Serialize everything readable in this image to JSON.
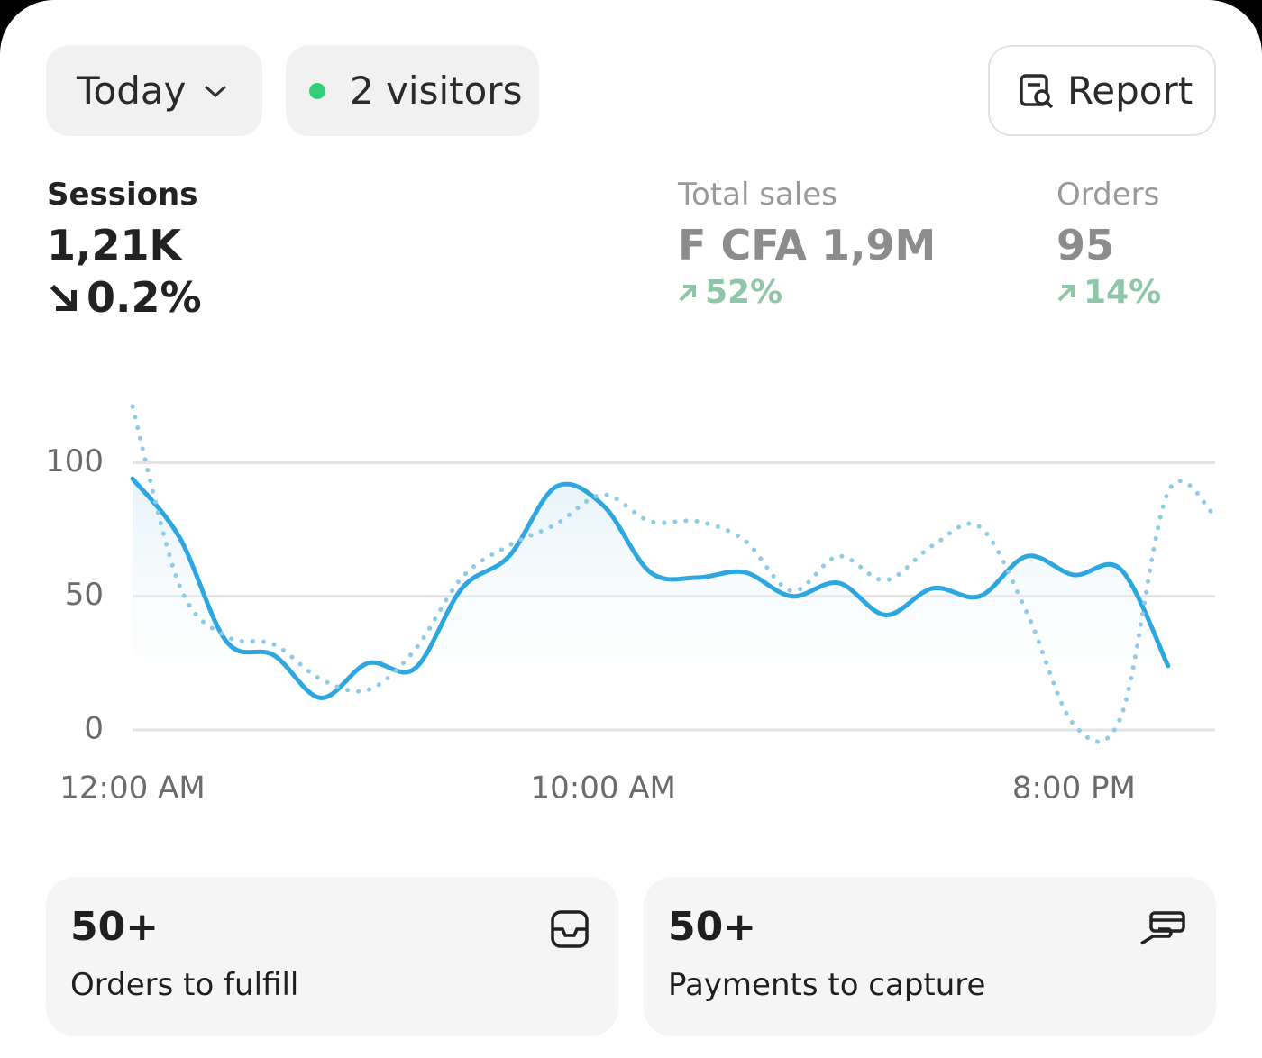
{
  "toolbar": {
    "period": "Today",
    "visitors": "2 visitors",
    "report": "Report"
  },
  "metrics": [
    {
      "label": "Sessions",
      "value": "1,21K",
      "change": "0.2%"
    },
    {
      "label": "Total sales",
      "value": "F CFA 1,9M",
      "change": "52%"
    },
    {
      "label": "Orders",
      "value": "95",
      "change": "14%"
    }
  ],
  "chart_data": {
    "type": "line",
    "x": [
      0,
      1,
      2,
      3,
      4,
      5,
      6,
      7,
      8,
      9,
      10,
      11,
      12,
      13,
      14,
      15,
      16,
      17,
      18,
      19,
      20,
      21,
      22,
      23
    ],
    "series": [
      {
        "color": "#2ea6e0",
        "style": "solid",
        "fill": true,
        "values": [
          94,
          72,
          33,
          28,
          12,
          25,
          23,
          53,
          65,
          91,
          84,
          59,
          57,
          59,
          50,
          55,
          43,
          53,
          50,
          65,
          58,
          60,
          24,
          null
        ]
      },
      {
        "color": "#8ecbe8",
        "style": "dotted",
        "fill": false,
        "values": [
          121,
          54,
          35,
          32,
          19,
          15,
          30,
          57,
          69,
          77,
          88,
          78,
          78,
          71,
          52,
          65,
          56,
          69,
          76,
          44,
          2,
          5,
          89,
          80
        ]
      }
    ],
    "xlim": [
      0,
      23
    ],
    "xticks": [
      {
        "value": 0,
        "label": "12:00 AM"
      },
      {
        "value": 10,
        "label": "10:00 AM"
      },
      {
        "value": 20,
        "label": "8:00 PM"
      }
    ],
    "ylim": [
      0,
      120
    ],
    "yticks": [
      0,
      50,
      100
    ],
    "grid": true
  },
  "cards": [
    {
      "value": "50+",
      "label": "Orders to fulfill"
    },
    {
      "value": "50+",
      "label": "Payments to capture"
    }
  ]
}
